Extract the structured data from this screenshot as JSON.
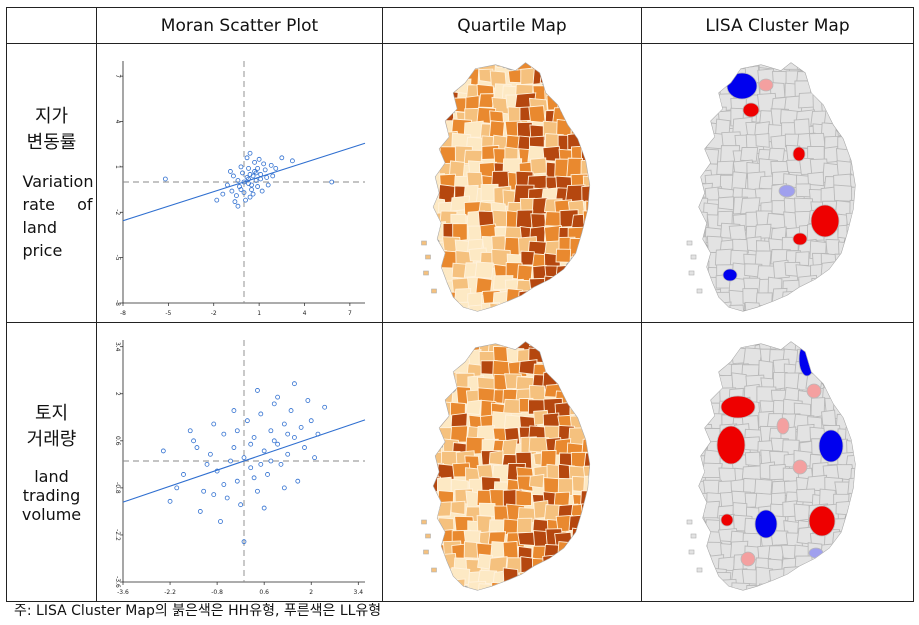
{
  "headers": [
    "Moran Scatter Plot",
    "Quartile Map",
    "LISA Cluster Map"
  ],
  "rows": [
    {
      "label_ko_1": "지가",
      "label_ko_2": "변동률",
      "label_en": [
        "Variation",
        "rate",
        "of",
        "land",
        "price"
      ],
      "scatter": {
        "xticks": [
          "-8",
          "-5",
          "-2",
          "1",
          "4",
          "7"
        ],
        "yticks": [
          "7",
          "4",
          "1",
          "-2",
          "-5",
          "-8"
        ],
        "xlim": [
          -8,
          8
        ],
        "ylim": [
          -8,
          8
        ],
        "slope": 0.32,
        "points": [
          [
            0.2,
            0.3
          ],
          [
            0.5,
            -0.2
          ],
          [
            -0.4,
            0.1
          ],
          [
            0.8,
            0.6
          ],
          [
            1.1,
            0.2
          ],
          [
            -0.2,
            -0.5
          ],
          [
            0.3,
            0.9
          ],
          [
            0.6,
            -0.8
          ],
          [
            -0.7,
            0.4
          ],
          [
            1.4,
            0.8
          ],
          [
            0.0,
            0.0
          ],
          [
            0.9,
            -0.3
          ],
          [
            -1.1,
            -0.2
          ],
          [
            0.4,
            0.5
          ],
          [
            1.8,
            1.1
          ],
          [
            -0.5,
            -0.9
          ],
          [
            0.7,
            1.3
          ],
          [
            0.1,
            -1.2
          ],
          [
            1.2,
            -0.6
          ],
          [
            -0.9,
            0.7
          ],
          [
            0.3,
            0.2
          ],
          [
            0.6,
            0.4
          ],
          [
            -0.3,
            -0.3
          ],
          [
            1.5,
            0.3
          ],
          [
            0.2,
            1.6
          ],
          [
            -1.4,
            -0.8
          ],
          [
            0.9,
            0.9
          ],
          [
            0.5,
            -0.5
          ],
          [
            -0.1,
            0.6
          ],
          [
            1.0,
            1.5
          ],
          [
            2.1,
            0.9
          ],
          [
            -0.6,
            -1.3
          ],
          [
            0.4,
            -1.0
          ],
          [
            1.3,
            1.2
          ],
          [
            0.8,
            0.1
          ],
          [
            -0.2,
            1.0
          ],
          [
            0.0,
            -0.7
          ],
          [
            1.6,
            -0.2
          ],
          [
            -1.8,
            -1.2
          ],
          [
            0.7,
            0.7
          ],
          [
            2.5,
            1.6
          ],
          [
            3.2,
            1.4
          ],
          [
            -0.8,
            -0.6
          ],
          [
            0.3,
            -0.1
          ],
          [
            1.1,
            0.5
          ],
          [
            -5.2,
            0.2
          ],
          [
            5.8,
            0.0
          ],
          [
            0.4,
            1.9
          ],
          [
            1.9,
            0.4
          ],
          [
            -0.4,
            -1.6
          ]
        ]
      },
      "quartile_colors": [
        "#fde9c4",
        "#f5c17e",
        "#e9892f",
        "#b5470f"
      ],
      "lisa_colors": [
        "#e3e3e3",
        "#0000ee",
        "#ee0000",
        "#f4a0a0",
        "#a0a0ee"
      ]
    },
    {
      "label_ko_1": "토지",
      "label_ko_2": "거래량",
      "label_en": [
        "land",
        "trading",
        "volume"
      ],
      "scatter": {
        "xticks": [
          "-3.6",
          "-2.2",
          "-0.8",
          "0.6",
          "2",
          "3.4"
        ],
        "yticks": [
          "3.4",
          "2",
          "0.6",
          "-0.8",
          "-2.2",
          "-3.6"
        ],
        "xlim": [
          -3.6,
          3.6
        ],
        "ylim": [
          -3.6,
          3.6
        ],
        "slope": 0.34,
        "points": [
          [
            -2.4,
            0.3
          ],
          [
            -1.8,
            -0.4
          ],
          [
            -1.5,
            0.6
          ],
          [
            -1.2,
            -0.9
          ],
          [
            -1.0,
            0.2
          ],
          [
            -0.8,
            -0.3
          ],
          [
            -0.6,
            0.8
          ],
          [
            -0.5,
            -1.1
          ],
          [
            -0.3,
            0.4
          ],
          [
            -0.2,
            -0.6
          ],
          [
            0.0,
            0.1
          ],
          [
            0.1,
            1.2
          ],
          [
            0.2,
            -0.2
          ],
          [
            0.3,
            0.7
          ],
          [
            0.4,
            -0.9
          ],
          [
            0.5,
            1.4
          ],
          [
            0.6,
            0.3
          ],
          [
            0.7,
            -0.4
          ],
          [
            0.8,
            0.9
          ],
          [
            0.9,
            1.7
          ],
          [
            1.0,
            0.5
          ],
          [
            1.1,
            -0.1
          ],
          [
            1.2,
            1.1
          ],
          [
            1.3,
            0.2
          ],
          [
            1.4,
            1.5
          ],
          [
            1.5,
            0.7
          ],
          [
            1.6,
            -0.6
          ],
          [
            1.7,
            1.0
          ],
          [
            1.8,
            0.4
          ],
          [
            1.9,
            1.8
          ],
          [
            2.0,
            1.2
          ],
          [
            2.2,
            0.8
          ],
          [
            2.4,
            1.6
          ],
          [
            -2.0,
            -0.8
          ],
          [
            -1.6,
            0.9
          ],
          [
            -1.3,
            -1.5
          ],
          [
            -0.9,
            1.1
          ],
          [
            -0.7,
            -1.8
          ],
          [
            -0.4,
            0.0
          ],
          [
            -0.1,
            -1.3
          ],
          [
            0.2,
            0.5
          ],
          [
            0.4,
            2.1
          ],
          [
            0.6,
            -1.4
          ],
          [
            0.8,
            0.0
          ],
          [
            1.0,
            1.9
          ],
          [
            1.2,
            -0.8
          ],
          [
            -1.1,
            -0.1
          ],
          [
            -0.3,
            1.5
          ],
          [
            0.0,
            -2.4
          ],
          [
            1.5,
            2.3
          ],
          [
            -2.2,
            -1.2
          ],
          [
            -0.6,
            -0.7
          ],
          [
            0.3,
            -0.5
          ],
          [
            0.9,
            0.6
          ],
          [
            2.1,
            0.1
          ],
          [
            -1.4,
            0.4
          ],
          [
            -0.2,
            0.9
          ],
          [
            0.5,
            -0.1
          ],
          [
            1.3,
            0.8
          ],
          [
            -0.9,
            -1.0
          ]
        ]
      },
      "quartile_colors": [
        "#fde9c4",
        "#f5c17e",
        "#e9892f",
        "#b5470f"
      ],
      "lisa_colors": [
        "#e3e3e3",
        "#0000ee",
        "#ee0000",
        "#f4a0a0",
        "#a0a0ee"
      ]
    }
  ],
  "note": "주: LISA Cluster Map의 붉은색은 HH유형, 푸른색은 LL유형",
  "chart_data": [
    {
      "type": "scatter",
      "title": "Moran Scatter Plot",
      "row": "지가 변동률 Variation rate of land price",
      "xlim": [
        -8,
        8
      ],
      "ylim": [
        -8,
        8
      ],
      "x_ticks": [
        -8,
        -5,
        -2,
        1,
        4,
        7
      ],
      "y_ticks": [
        7,
        4,
        1,
        -2,
        -5,
        -8
      ],
      "trend_slope": 0.32
    },
    {
      "type": "scatter",
      "title": "Moran Scatter Plot",
      "row": "토지 거래량 land trading volume",
      "xlim": [
        -3.6,
        3.6
      ],
      "ylim": [
        -3.6,
        3.6
      ],
      "x_ticks": [
        -3.6,
        -2.2,
        -0.8,
        0.6,
        2,
        3.4
      ],
      "y_ticks": [
        3.4,
        2,
        0.6,
        -0.8,
        -2.2,
        -3.6
      ],
      "trend_slope": 0.34
    }
  ]
}
